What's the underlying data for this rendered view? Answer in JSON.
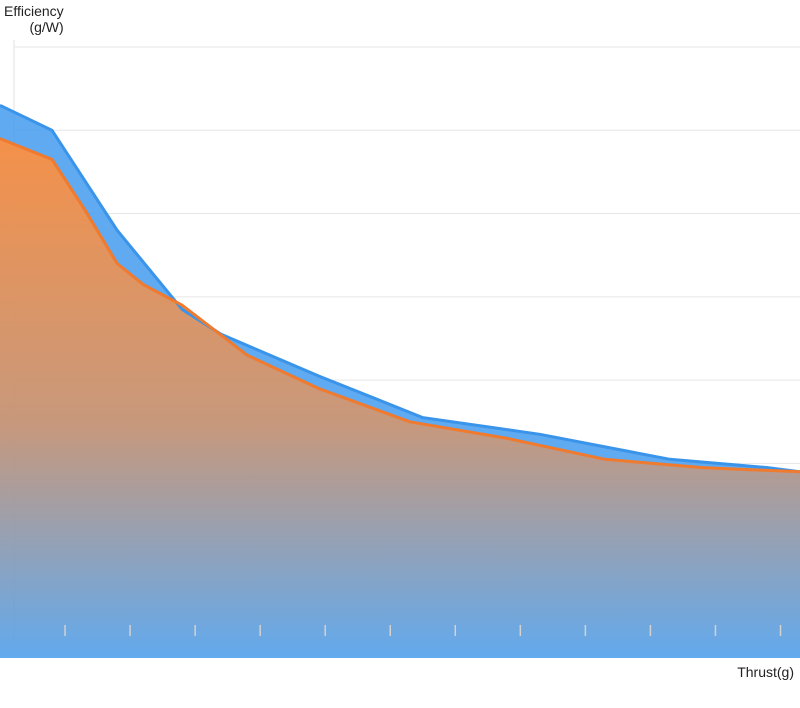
{
  "chart_data": {
    "type": "area",
    "ylabel_line1": "Efficiency",
    "ylabel_line2": "(g/W)",
    "xlabel": "Thrust(g)",
    "xlim": [
      0,
      12.3
    ],
    "ylim": [
      0,
      7.3
    ],
    "x_ticks": [
      1,
      2,
      3,
      4,
      5,
      6,
      7,
      8,
      9,
      10,
      11,
      12
    ],
    "y_gridlines": [
      1.0,
      2.0,
      3.0,
      4.0,
      5.0,
      6.0,
      7.0
    ],
    "grid": true,
    "legend": "none",
    "series": [
      {
        "color": "#4ea1ef",
        "x": [
          0,
          0.8,
          1.8,
          2.8,
          3.4,
          4.9,
          6.5,
          8.3,
          10.3,
          11.8,
          12.3
        ],
        "y": [
          6.3,
          6.0,
          4.8,
          3.85,
          3.55,
          3.05,
          2.55,
          2.35,
          2.05,
          1.95,
          1.9
        ]
      },
      {
        "color": "#f07a2e",
        "x": [
          0,
          0.8,
          1.3,
          1.8,
          2.2,
          2.8,
          3.8,
          4.9,
          6.3,
          7.8,
          9.3,
          10.8,
          12.3
        ],
        "y": [
          5.9,
          5.65,
          5.05,
          4.4,
          4.15,
          3.9,
          3.3,
          2.9,
          2.5,
          2.3,
          2.05,
          1.95,
          1.9
        ]
      }
    ]
  }
}
